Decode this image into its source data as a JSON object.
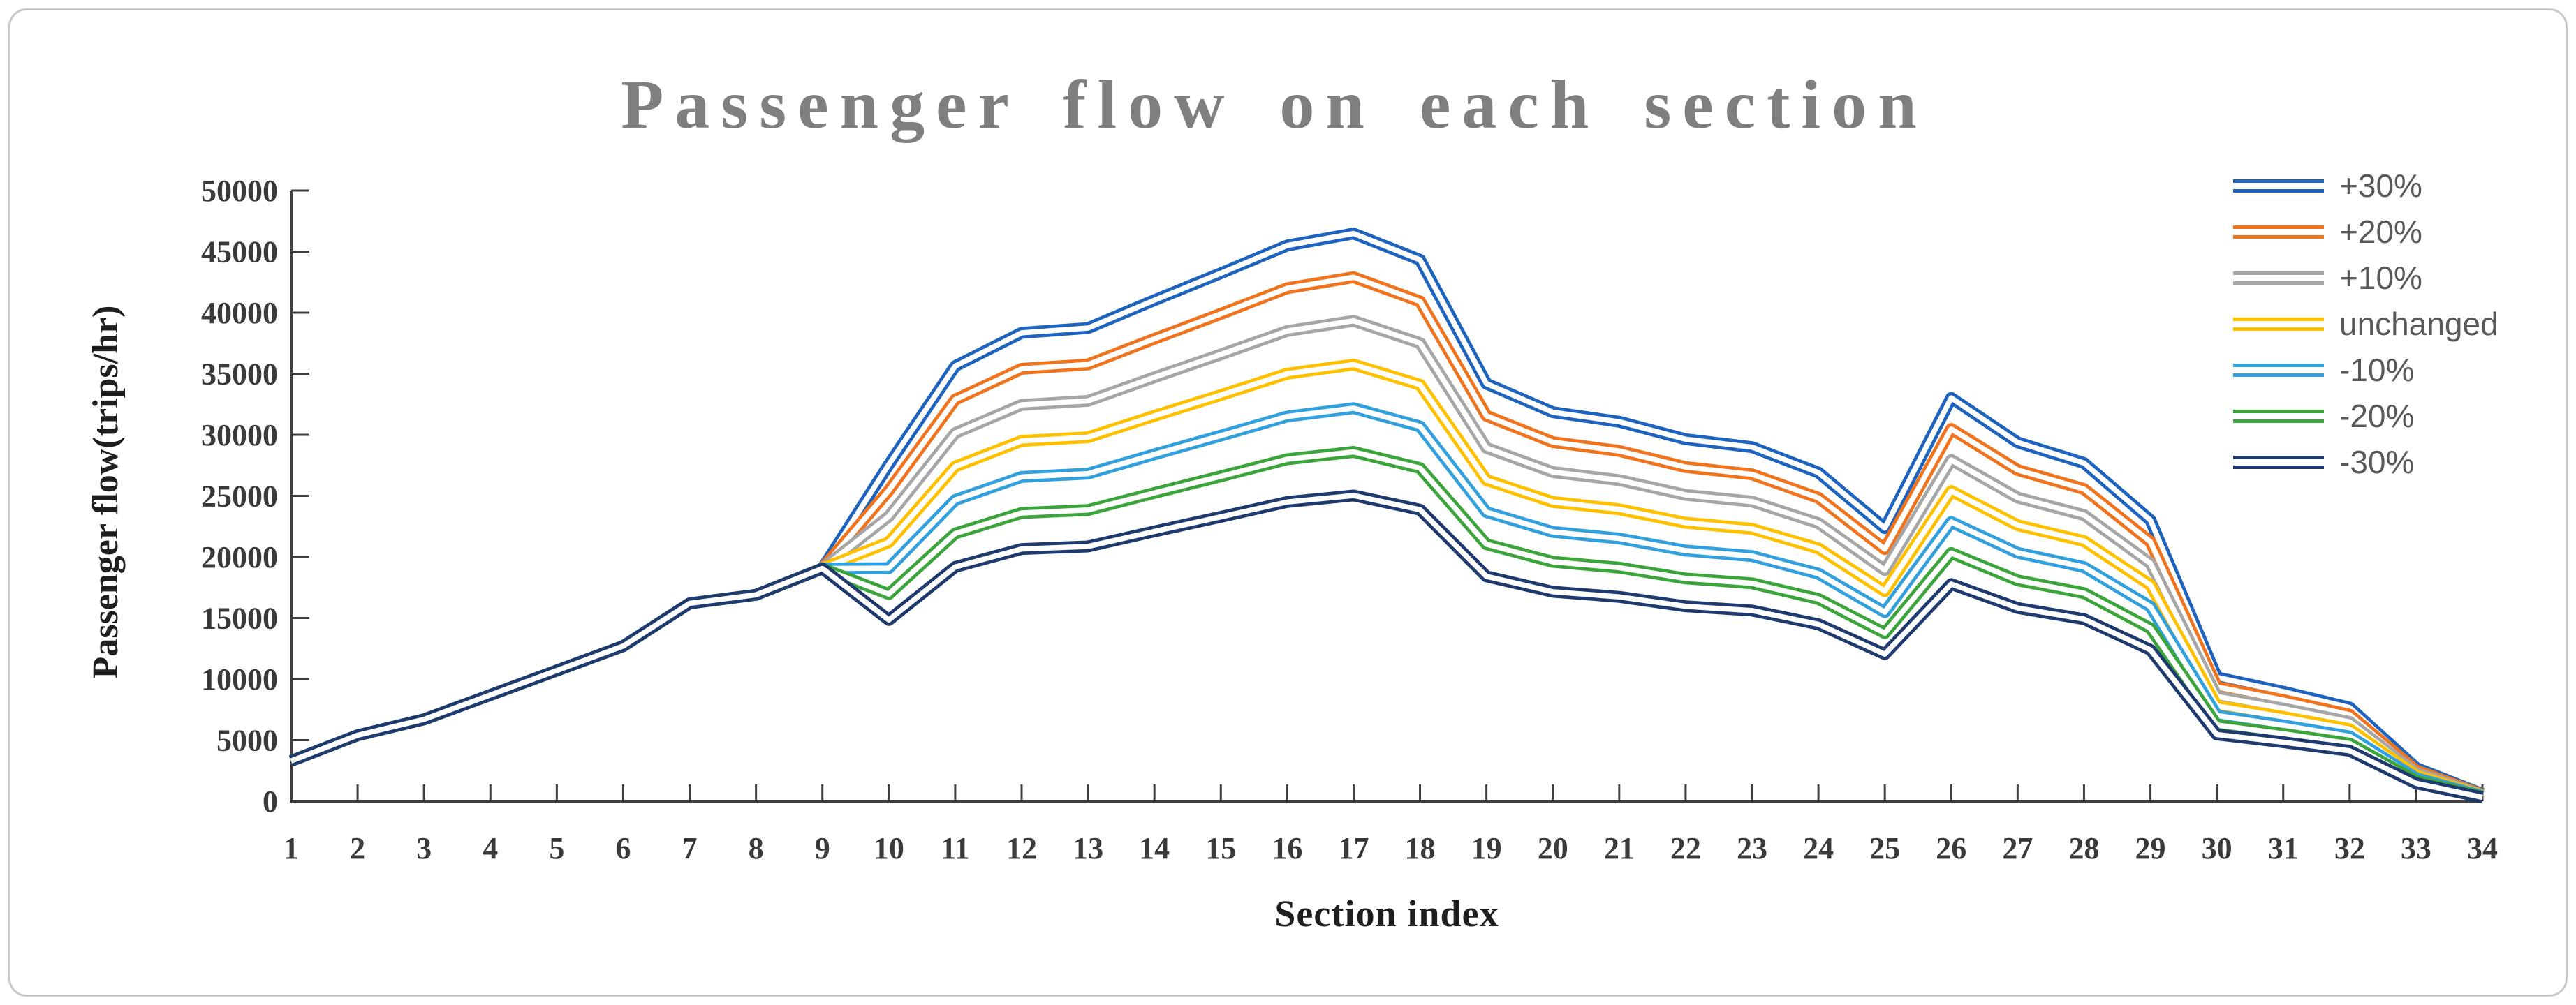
{
  "figure": {
    "background": "#ffffff",
    "border_color": "#c9c9c9"
  },
  "chart_data": {
    "type": "line",
    "title": "Passenger flow on each section",
    "title_color": "#7f7f7f",
    "xlabel": "Section index",
    "ylabel": "Passenger flow(trips/hr)",
    "x": [
      1,
      2,
      3,
      4,
      5,
      6,
      7,
      8,
      9,
      10,
      11,
      12,
      13,
      14,
      15,
      16,
      17,
      18,
      19,
      20,
      21,
      22,
      23,
      24,
      25,
      26,
      27,
      28,
      29,
      30,
      31,
      32,
      33,
      34
    ],
    "ylim": [
      0,
      50000
    ],
    "yticks": [
      0,
      5000,
      10000,
      15000,
      20000,
      25000,
      30000,
      35000,
      40000,
      45000,
      50000
    ],
    "grid": false,
    "legend_position": "top-right",
    "line_style": "double-line-with-white-core",
    "axis_color": "#3f3f3f",
    "tick_label_color": "#3a3a3a",
    "legend_text_color": "#595959",
    "note": "All series share identical values for sections 1-9; from section 10 onward each series is the unchanged demand scaled by its percentage factor.",
    "series": [
      {
        "name": "+30%",
        "color": "#1E63BE",
        "factor": 1.3,
        "values": [
          3300,
          5400,
          6700,
          8700,
          10700,
          12700,
          16200,
          16900,
          19050,
          27560,
          35620,
          38350,
          38740,
          41020,
          43230,
          45500,
          46480,
          44330,
          34190,
          31850,
          31070,
          29640,
          28990,
          26910,
          22360,
          33020,
          29380,
          27690,
          23010,
          10140,
          8970,
          7670,
          2730,
          590
        ]
      },
      {
        "name": "+20%",
        "color": "#F0731E",
        "factor": 1.2,
        "values": [
          3300,
          5400,
          6700,
          8700,
          10700,
          12700,
          16200,
          16900,
          19050,
          25440,
          32880,
          35400,
          35760,
          37860,
          39900,
          42000,
          42900,
          40920,
          31560,
          29400,
          28680,
          27360,
          26760,
          24840,
          20640,
          30480,
          27120,
          25560,
          21240,
          9360,
          8280,
          7080,
          2520,
          540
        ]
      },
      {
        "name": "+10%",
        "color": "#A6A6A6",
        "factor": 1.1,
        "values": [
          3300,
          5400,
          6700,
          8700,
          10700,
          12700,
          16200,
          16900,
          19050,
          23320,
          30140,
          32450,
          32780,
          34710,
          36580,
          38500,
          39330,
          37510,
          28930,
          26950,
          26290,
          25080,
          24530,
          22770,
          18920,
          27940,
          24860,
          23430,
          19470,
          8580,
          7590,
          6490,
          2310,
          500
        ]
      },
      {
        "name": "unchanged",
        "color": "#FFC000",
        "factor": 1.0,
        "values": [
          3300,
          5400,
          6700,
          8700,
          10700,
          12700,
          16200,
          16900,
          19050,
          21200,
          27400,
          29500,
          29800,
          31550,
          33250,
          35000,
          35750,
          34100,
          26300,
          24500,
          23900,
          22800,
          22300,
          20700,
          17200,
          25400,
          22600,
          21300,
          17700,
          7800,
          6900,
          5900,
          2100,
          450
        ]
      },
      {
        "name": "-10%",
        "color": "#33A0DE",
        "factor": 0.9,
        "values": [
          3300,
          5400,
          6700,
          8700,
          10700,
          12700,
          16200,
          16900,
          19050,
          19080,
          24660,
          26550,
          26820,
          28400,
          29930,
          31500,
          32180,
          30690,
          23670,
          22050,
          21510,
          20520,
          20070,
          18630,
          15480,
          22860,
          20340,
          19170,
          15930,
          7020,
          6210,
          5310,
          1890,
          410
        ]
      },
      {
        "name": "-20%",
        "color": "#3BA53B",
        "factor": 0.8,
        "values": [
          3300,
          5400,
          6700,
          8700,
          10700,
          12700,
          16200,
          16900,
          19050,
          16960,
          21920,
          23600,
          23840,
          25240,
          26600,
          28000,
          28600,
          27280,
          21040,
          19600,
          19120,
          18240,
          17840,
          16560,
          13760,
          20320,
          18080,
          17040,
          14160,
          6240,
          5520,
          4720,
          1680,
          360
        ]
      },
      {
        "name": "-30%",
        "color": "#1E3A6E",
        "factor": 0.7,
        "values": [
          3300,
          5400,
          6700,
          8700,
          10700,
          12700,
          16200,
          16900,
          19050,
          14840,
          19180,
          20650,
          20860,
          22090,
          23280,
          24500,
          25030,
          23870,
          18410,
          17150,
          16730,
          15960,
          15610,
          14490,
          12040,
          17780,
          15820,
          14910,
          12390,
          5460,
          4830,
          4130,
          1470,
          320
        ]
      }
    ]
  }
}
